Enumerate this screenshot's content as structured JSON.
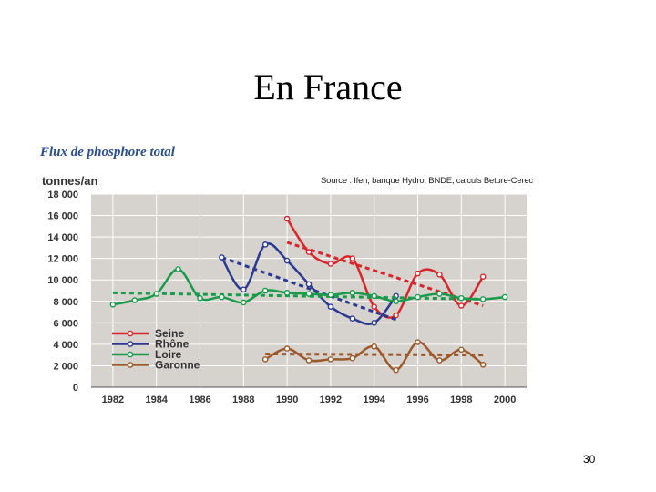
{
  "slide": {
    "title": "En France",
    "page_number": "30"
  },
  "chart_data": {
    "type": "line",
    "title": "Flux de phosphore total",
    "ylabel": "tonnes/an",
    "source": "Source : Ifen, banque Hydro, BNDE, calculs Beture-Cerec",
    "xlim": [
      1981,
      2001
    ],
    "ylim": [
      0,
      18000
    ],
    "x_ticks": [
      "1982",
      "1984",
      "1986",
      "1988",
      "1990",
      "1992",
      "1994",
      "1996",
      "1998",
      "2000"
    ],
    "y_ticks": [
      "0",
      "2 000",
      "4 000",
      "6 000",
      "8 000",
      "10 000",
      "12 000",
      "14 000",
      "16 000",
      "18 000"
    ],
    "grid": true,
    "legend_position": "bottom-left",
    "series": [
      {
        "name": "Seine",
        "color": "#d8262b",
        "points": [
          [
            1990,
            15700
          ],
          [
            1991,
            12600
          ],
          [
            1992,
            11500
          ],
          [
            1993,
            12000
          ],
          [
            1994,
            7500
          ],
          [
            1995,
            6700
          ],
          [
            1996,
            10600
          ],
          [
            1997,
            10500
          ],
          [
            1998,
            7600
          ],
          [
            1999,
            10300
          ]
        ],
        "trend": [
          [
            1990,
            13500
          ],
          [
            1999,
            7600
          ]
        ]
      },
      {
        "name": "Rhône",
        "color": "#2b3990",
        "points": [
          [
            1987,
            12100
          ],
          [
            1988,
            9100
          ],
          [
            1989,
            13300
          ],
          [
            1990,
            11800
          ],
          [
            1991,
            9600
          ],
          [
            1992,
            7500
          ],
          [
            1993,
            6400
          ],
          [
            1994,
            6000
          ],
          [
            1995,
            8500
          ]
        ],
        "trend": [
          [
            1987,
            12100
          ],
          [
            1995,
            6300
          ]
        ]
      },
      {
        "name": "Loire",
        "color": "#1a9a4a",
        "points": [
          [
            1982,
            7700
          ],
          [
            1983,
            8100
          ],
          [
            1984,
            8700
          ],
          [
            1985,
            11000
          ],
          [
            1986,
            8300
          ],
          [
            1987,
            8400
          ],
          [
            1988,
            7900
          ],
          [
            1989,
            9000
          ],
          [
            1990,
            8800
          ],
          [
            1991,
            8700
          ],
          [
            1992,
            8600
          ],
          [
            1993,
            8800
          ],
          [
            1994,
            8500
          ],
          [
            1995,
            8000
          ],
          [
            1996,
            8400
          ],
          [
            1997,
            8700
          ],
          [
            1998,
            8300
          ],
          [
            1999,
            8200
          ],
          [
            2000,
            8400
          ]
        ],
        "trend": [
          [
            1982,
            8800
          ],
          [
            1999,
            8200
          ]
        ]
      },
      {
        "name": "Garonne",
        "color": "#9c5a2c",
        "points": [
          [
            1989,
            2600
          ],
          [
            1990,
            3600
          ],
          [
            1991,
            2500
          ],
          [
            1992,
            2600
          ],
          [
            1993,
            2700
          ],
          [
            1994,
            3800
          ],
          [
            1995,
            1600
          ],
          [
            1996,
            4200
          ],
          [
            1997,
            2500
          ],
          [
            1998,
            3500
          ],
          [
            1999,
            2100
          ]
        ],
        "trend": [
          [
            1989,
            3100
          ],
          [
            1999,
            3000
          ]
        ]
      }
    ]
  }
}
